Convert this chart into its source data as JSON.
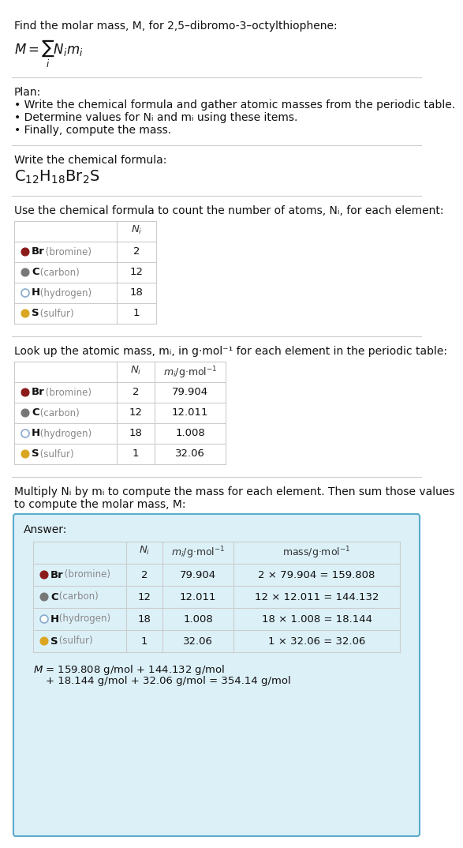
{
  "title_line": "Find the molar mass, M, for 2,5–dibromo-3–octylthiophene:",
  "plan_header": "Plan:",
  "plan_bullets": [
    "• Write the chemical formula and gather atomic masses from the periodic table.",
    "• Determine values for Nᵢ and mᵢ using these items.",
    "• Finally, compute the mass."
  ],
  "formula_section_header": "Write the chemical formula:",
  "count_section_header": "Use the chemical formula to count the number of atoms, Nᵢ, for each element:",
  "lookup_section_header": "Look up the atomic mass, mᵢ, in g·mol⁻¹ for each element in the periodic table:",
  "multiply_section_header": "Multiply Nᵢ by mᵢ to compute the mass for each element. Then sum those values\nto compute the molar mass, M:",
  "elements": [
    "Br (bromine)",
    "C (carbon)",
    "H (hydrogen)",
    "S (sulfur)"
  ],
  "element_symbols": [
    "Br",
    "C",
    "H",
    "S"
  ],
  "element_colors": [
    "#8B1A1A",
    "#777777",
    "#FFFFFF",
    "#DAA520"
  ],
  "element_border_colors": [
    "#8B1A1A",
    "#777777",
    "#88AACC",
    "#DAA520"
  ],
  "N_i": [
    2,
    12,
    18,
    1
  ],
  "m_i": [
    "79.904",
    "12.011",
    "1.008",
    "32.06"
  ],
  "mass_calcs": [
    "2 × 79.904 = 159.808",
    "12 × 12.011 = 144.132",
    "18 × 1.008 = 18.144",
    "1 × 32.06 = 32.06"
  ],
  "answer_box_color": "#DCF0F8",
  "answer_box_border": "#5AABCC",
  "bg_color": "#FFFFFF",
  "sep_color": "#CCCCCC",
  "text_color": "#111111",
  "gray_text": "#888888",
  "table_line_color": "#CCCCCC",
  "font_size": 10.0,
  "small_font": 9.0,
  "formula_font": 14.0
}
